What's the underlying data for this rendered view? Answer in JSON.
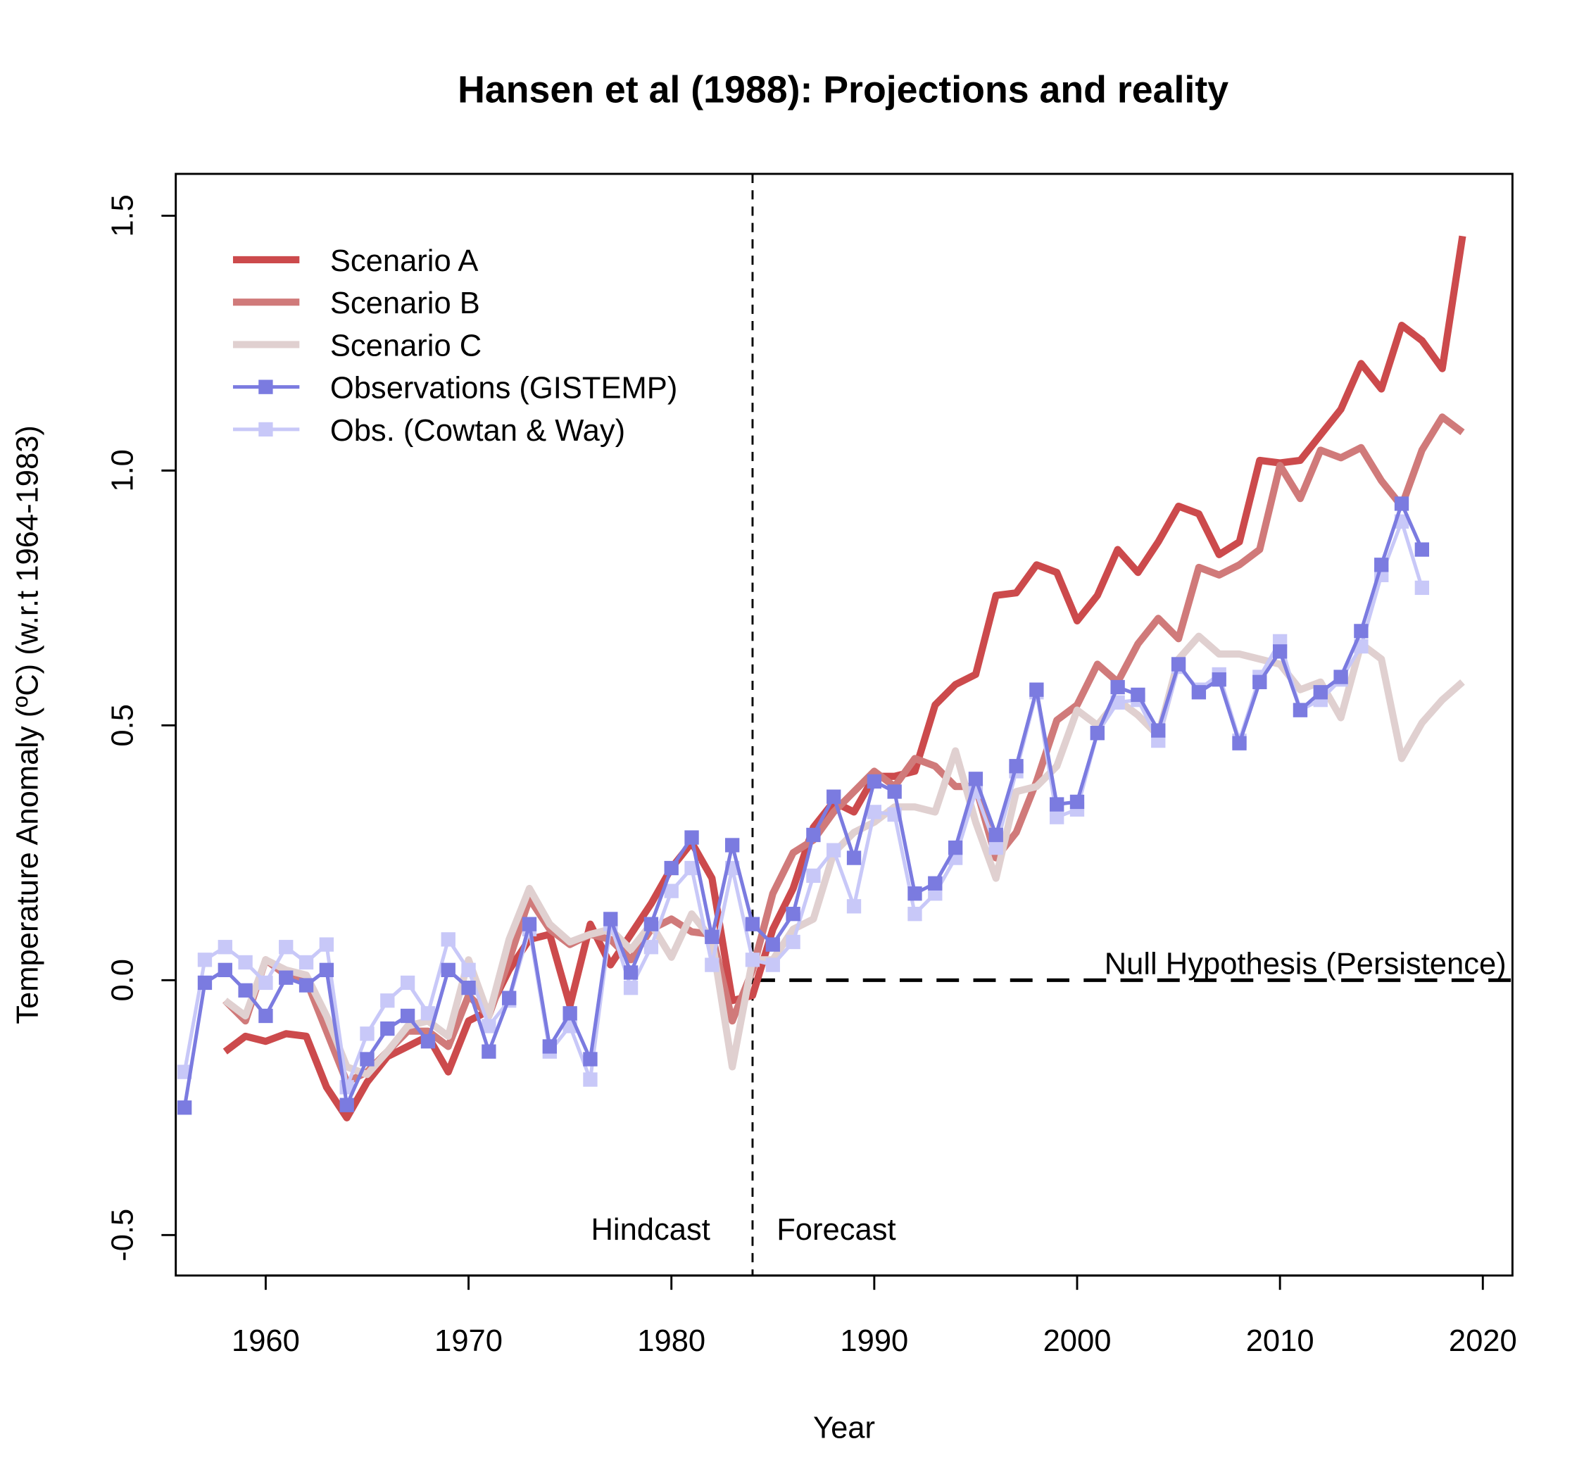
{
  "chart_data": {
    "type": "line",
    "title": "Hansen et al (1988): Projections and reality",
    "xlabel": "Year",
    "ylabel": "Temperature Anomaly (ºC) (w.r.t 1964-1983)",
    "xlim": [
      1955.6,
      2021.5
    ],
    "ylim": [
      -0.58,
      1.58
    ],
    "xticks": [
      1960,
      1970,
      1980,
      1990,
      2000,
      2010,
      2020
    ],
    "yticks": [
      "-0.5",
      "0.0",
      "0.5",
      "1.0",
      "1.5"
    ],
    "grid": false,
    "legend_position": "top-left",
    "annotations": {
      "hindcast": "Hindcast",
      "forecast": "Forecast",
      "null_hypothesis": "Null Hypothesis (Persistence)",
      "divider_year": 1984,
      "null_value": 0.0
    },
    "series": [
      {
        "name": "Scenario A",
        "color": "#cc4a4c",
        "markers": false,
        "x_start": 1958,
        "values": [
          -0.14,
          -0.11,
          -0.12,
          -0.105,
          -0.11,
          -0.21,
          -0.27,
          -0.2,
          -0.15,
          -0.13,
          -0.11,
          -0.18,
          -0.08,
          -0.06,
          0.02,
          0.08,
          0.09,
          -0.05,
          0.11,
          0.03,
          0.09,
          0.15,
          0.22,
          0.27,
          0.2,
          -0.04,
          -0.03,
          0.1,
          0.18,
          0.3,
          0.35,
          0.33,
          0.4,
          0.4,
          0.41,
          0.54,
          0.58,
          0.6,
          0.755,
          0.76,
          0.815,
          0.8,
          0.705,
          0.755,
          0.845,
          0.8,
          0.86,
          0.93,
          0.915,
          0.835,
          0.86,
          1.02,
          1.015,
          1.02,
          1.07,
          1.12,
          1.21,
          1.16,
          1.285,
          1.255,
          1.2,
          1.46
        ]
      },
      {
        "name": "Scenario B",
        "color": "#d07a7a",
        "markers": false,
        "x_start": 1958,
        "values": [
          -0.04,
          -0.08,
          0.04,
          0.01,
          0.0,
          -0.1,
          -0.2,
          -0.18,
          -0.14,
          -0.1,
          -0.1,
          -0.13,
          -0.03,
          -0.07,
          0.04,
          0.16,
          0.1,
          0.07,
          0.09,
          0.08,
          0.04,
          0.1,
          0.12,
          0.095,
          0.09,
          -0.08,
          0.02,
          0.17,
          0.25,
          0.275,
          0.33,
          0.37,
          0.41,
          0.38,
          0.435,
          0.42,
          0.38,
          0.38,
          0.24,
          0.29,
          0.39,
          0.51,
          0.54,
          0.62,
          0.585,
          0.66,
          0.71,
          0.67,
          0.81,
          0.795,
          0.815,
          0.845,
          1.01,
          0.945,
          1.04,
          1.025,
          1.045,
          0.98,
          0.93,
          1.04,
          1.105,
          1.075
        ]
      },
      {
        "name": "Scenario C",
        "color": "#e0d0d0",
        "markers": false,
        "x_start": 1958,
        "values": [
          -0.04,
          -0.07,
          0.04,
          0.02,
          0.01,
          -0.07,
          -0.17,
          -0.185,
          -0.14,
          -0.09,
          -0.08,
          -0.11,
          0.04,
          -0.07,
          0.08,
          0.18,
          0.11,
          0.075,
          0.09,
          0.1,
          0.06,
          0.11,
          0.045,
          0.13,
          0.08,
          -0.17,
          0.04,
          0.04,
          0.1,
          0.12,
          0.25,
          0.29,
          0.31,
          0.34,
          0.34,
          0.33,
          0.45,
          0.31,
          0.2,
          0.37,
          0.38,
          0.42,
          0.53,
          0.5,
          0.55,
          0.52,
          0.48,
          0.63,
          0.675,
          0.64,
          0.64,
          0.63,
          0.62,
          0.57,
          0.585,
          0.515,
          0.66,
          0.63,
          0.435,
          0.505,
          0.55,
          0.585
        ]
      },
      {
        "name": "Obs. (Cowtan & Way)",
        "color": "#c8c8f8",
        "markers": true,
        "x_start": 1956,
        "values": [
          -0.18,
          0.04,
          0.065,
          0.035,
          -0.005,
          0.065,
          0.035,
          0.07,
          -0.21,
          -0.105,
          -0.04,
          -0.005,
          -0.065,
          0.08,
          0.02,
          -0.09,
          -0.04,
          0.1,
          -0.14,
          -0.09,
          -0.195,
          0.11,
          -0.015,
          0.065,
          0.175,
          0.22,
          0.03,
          0.22,
          0.04,
          0.03,
          0.075,
          0.205,
          0.255,
          0.145,
          0.33,
          0.325,
          0.13,
          0.17,
          0.24,
          0.37,
          0.26,
          0.41,
          0.565,
          0.32,
          0.335,
          0.485,
          0.545,
          0.55,
          0.47,
          0.615,
          0.57,
          0.6,
          0.47,
          0.595,
          0.665,
          0.53,
          0.55,
          0.59,
          0.655,
          0.795,
          0.9,
          0.77
        ]
      },
      {
        "name": "Observations (GISTEMP)",
        "color": "#7b7be0",
        "markers": true,
        "x_start": 1956,
        "values": [
          -0.25,
          -0.005,
          0.02,
          -0.02,
          -0.07,
          0.005,
          -0.01,
          0.02,
          -0.245,
          -0.155,
          -0.095,
          -0.07,
          -0.12,
          0.02,
          -0.015,
          -0.14,
          -0.035,
          0.11,
          -0.13,
          -0.065,
          -0.155,
          0.12,
          0.015,
          0.11,
          0.22,
          0.28,
          0.085,
          0.265,
          0.11,
          0.07,
          0.13,
          0.285,
          0.36,
          0.24,
          0.39,
          0.37,
          0.17,
          0.19,
          0.26,
          0.395,
          0.285,
          0.42,
          0.57,
          0.345,
          0.35,
          0.485,
          0.575,
          0.56,
          0.49,
          0.62,
          0.565,
          0.59,
          0.465,
          0.585,
          0.645,
          0.53,
          0.565,
          0.595,
          0.685,
          0.815,
          0.935,
          0.845
        ]
      }
    ],
    "legend_order": [
      "Scenario A",
      "Scenario B",
      "Scenario C",
      "Observations (GISTEMP)",
      "Obs. (Cowtan & Way)"
    ]
  }
}
